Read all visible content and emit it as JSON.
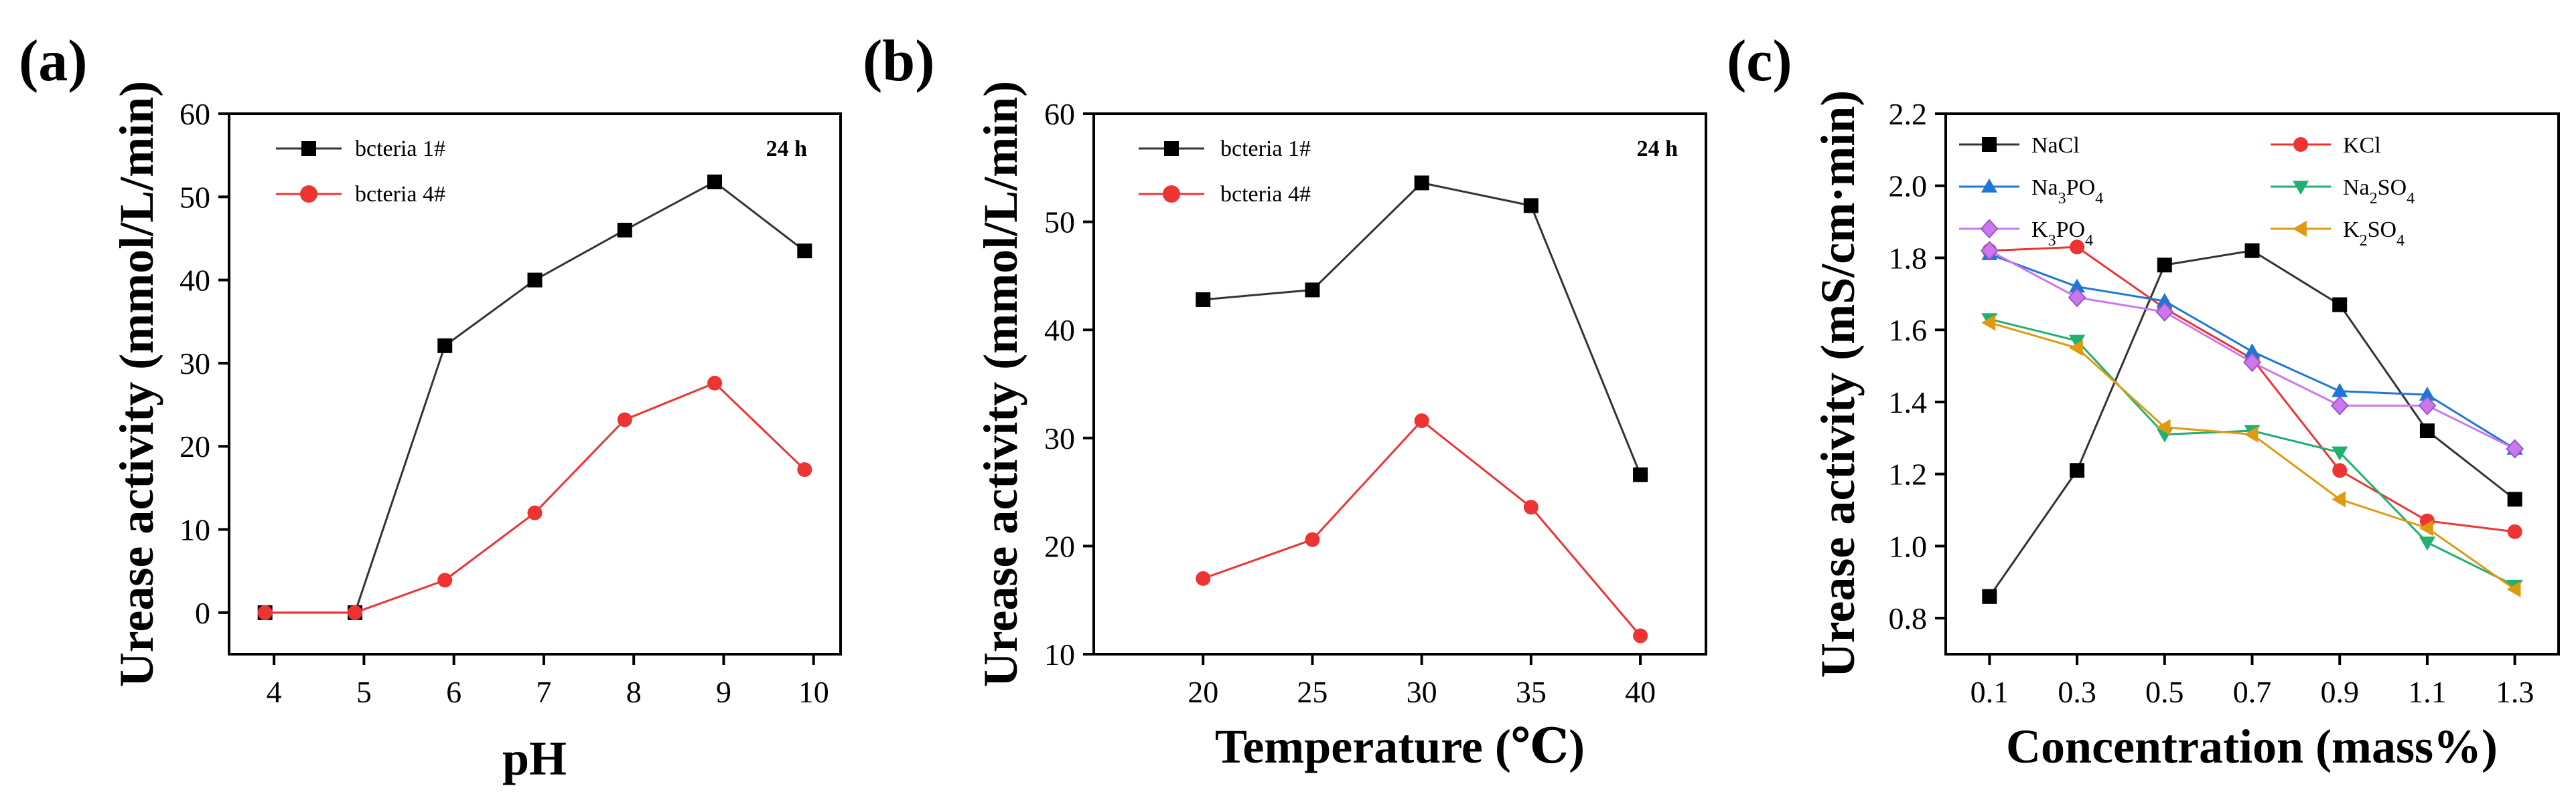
{
  "chart_data": [
    {
      "type": "line",
      "panel_label": "(a)",
      "xlabel": "pH",
      "ylabel": "Urease activity (mmol/L/min)",
      "xlim": [
        3.5,
        10.3
      ],
      "ylim": [
        -5,
        60
      ],
      "x": [
        3.9,
        4.9,
        5.9,
        6.9,
        7.9,
        8.9,
        9.9
      ],
      "xticks": [
        4,
        5,
        6,
        7,
        8,
        9,
        10
      ],
      "xtick_labels": [
        "4",
        "5",
        "6",
        "7",
        "8",
        "9",
        "10"
      ],
      "yticks": [
        0,
        10,
        20,
        30,
        40,
        50,
        60
      ],
      "ytick_labels": [
        "0",
        "10",
        "20",
        "30",
        "40",
        "50",
        "60"
      ],
      "annotation": "24 h",
      "series": [
        {
          "name": "bcteria 1#",
          "color": "#333333",
          "marker": "square",
          "values": [
            0,
            0,
            32.1,
            40,
            46,
            51.8,
            43.5
          ]
        },
        {
          "name": "bcteria 4#",
          "color": "#ee3333",
          "marker": "circle",
          "values": [
            0,
            0,
            3.9,
            12,
            23.2,
            27.6,
            17.2
          ]
        }
      ]
    },
    {
      "type": "line",
      "panel_label": "(b)",
      "xlabel": "Temperature (℃)",
      "ylabel": "Urease activity (mmol/L/min)",
      "xlim": [
        15,
        43
      ],
      "ylim": [
        10,
        60
      ],
      "x": [
        20,
        25,
        30,
        35,
        40
      ],
      "xticks": [
        20,
        25,
        30,
        35,
        40
      ],
      "xtick_labels": [
        "20",
        "25",
        "30",
        "35",
        "40"
      ],
      "yticks": [
        10,
        20,
        30,
        40,
        50,
        60
      ],
      "ytick_labels": [
        "10",
        "20",
        "30",
        "40",
        "50",
        "60"
      ],
      "annotation": "24 h",
      "series": [
        {
          "name": "bcteria 1#",
          "color": "#333333",
          "marker": "square",
          "values": [
            42.8,
            43.7,
            53.6,
            51.5,
            26.6
          ]
        },
        {
          "name": "bcteria 4#",
          "color": "#ee3333",
          "marker": "circle",
          "values": [
            17,
            20.6,
            31.6,
            23.6,
            11.7
          ]
        }
      ]
    },
    {
      "type": "line",
      "panel_label": "(c)",
      "xlabel": "Concentration (mass%)",
      "ylabel": "Urease activity (mS/cm·min)",
      "xlim": [
        0.0,
        1.4
      ],
      "ylim": [
        0.7,
        2.2
      ],
      "x": [
        0.1,
        0.3,
        0.5,
        0.7,
        0.9,
        1.1,
        1.3
      ],
      "xticks": [
        0.1,
        0.3,
        0.5,
        0.7,
        0.9,
        1.1,
        1.3
      ],
      "xtick_labels": [
        "0.1",
        "0.3",
        "0.5",
        "0.7",
        "0.9",
        "1.1",
        "1.3"
      ],
      "yticks": [
        0.8,
        1.0,
        1.2,
        1.4,
        1.6,
        1.8,
        2.0,
        2.2
      ],
      "ytick_labels": [
        "0.8",
        "1.0",
        "1.2",
        "1.4",
        "1.6",
        "1.8",
        "2.0",
        "2.2"
      ],
      "series": [
        {
          "name": "NaCl",
          "base": "NaCl",
          "sub": "",
          "tail": "",
          "color": "#333333",
          "marker": "square",
          "values": [
            0.86,
            1.21,
            1.78,
            1.82,
            1.67,
            1.32,
            1.13
          ]
        },
        {
          "name": "KCl",
          "base": "KCl",
          "sub": "",
          "tail": "",
          "color": "#ee3333",
          "marker": "circle",
          "values": [
            1.82,
            1.83,
            1.66,
            1.52,
            1.21,
            1.07,
            1.04
          ]
        },
        {
          "name": "Na3PO4",
          "base": "Na",
          "sub": "3",
          "tail": "PO",
          "sub2": "4",
          "color": "#1f77d4",
          "marker": "triangle-up",
          "values": [
            1.81,
            1.72,
            1.68,
            1.54,
            1.43,
            1.42,
            1.27
          ]
        },
        {
          "name": "Na2SO4",
          "base": "Na",
          "sub": "2",
          "tail": "SO",
          "sub2": "4",
          "color": "#20b070",
          "marker": "triangle-down",
          "values": [
            1.63,
            1.57,
            1.31,
            1.32,
            1.26,
            1.01,
            0.89
          ]
        },
        {
          "name": "K3PO4",
          "base": "K",
          "sub": "3",
          "tail": "PO",
          "sub2": "4",
          "color": "#cc77ee",
          "marker": "diamond",
          "values": [
            1.82,
            1.69,
            1.65,
            1.51,
            1.39,
            1.39,
            1.27
          ]
        },
        {
          "name": "K2SO4",
          "base": "K",
          "sub": "2",
          "tail": "SO",
          "sub2": "4",
          "color": "#e09a10",
          "marker": "triangle-left",
          "values": [
            1.62,
            1.55,
            1.33,
            1.31,
            1.13,
            1.05,
            0.88
          ]
        }
      ]
    }
  ]
}
